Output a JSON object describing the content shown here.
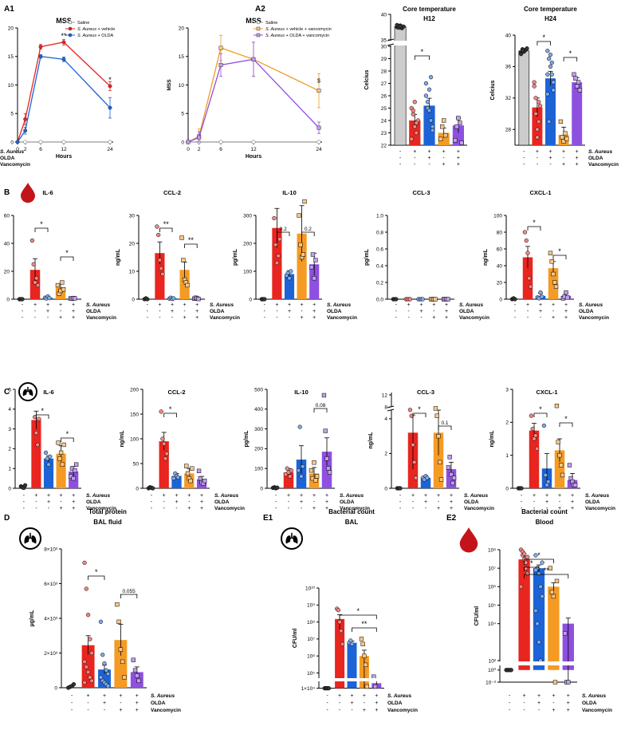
{
  "colors": {
    "saline": "#ffffff",
    "vehicle": "#e8251f",
    "olda": "#1c63d6",
    "vehicle_vanco": "#f59a23",
    "olda_vanco": "#8e50e0",
    "grey": "#cccccc"
  },
  "icons": {
    "blood": "blood-drop-icon",
    "lung": "lungs-icon"
  },
  "cond_row_labels": [
    "S. Aureus",
    "OLDA",
    "Vancomycin"
  ],
  "cond_row_values": [
    [
      "-",
      "+",
      "+",
      "+",
      "+"
    ],
    [
      "-",
      "-",
      "+",
      "-",
      "+"
    ],
    [
      "-",
      "-",
      "-",
      "+",
      "+"
    ]
  ],
  "panel_labels": {
    "A1": "A1",
    "A2": "A2",
    "B": "B",
    "C": "C",
    "D": "D",
    "E1": "E1",
    "E2": "E2"
  },
  "mss": {
    "title": "MSS",
    "xlabel": "Hours",
    "ylabel": "MSS",
    "x_ticks": [
      "0",
      "2",
      "6",
      "12",
      "24"
    ],
    "y_ticks": [
      "0",
      "5",
      "10",
      "15",
      "20"
    ],
    "legend_a1": [
      "Saline",
      "S. Aureus + vehicle",
      "S. Aureus + OLDA"
    ],
    "legend_a2": [
      "Saline",
      "S. Aureus + vehicle + vancomycin",
      "S. Aureus + OLDA + vancomycin"
    ],
    "sig_a1": [
      "**",
      "*"
    ],
    "sig_a2": [
      "$"
    ]
  },
  "core": {
    "title_h12": [
      "Core temperature",
      "H12"
    ],
    "title_h24": [
      "Core temperature",
      "H24"
    ],
    "ylabel": "Celcius",
    "h12_ticks": [
      "22",
      "23",
      "24",
      "25",
      "26",
      "27",
      "28",
      "29",
      "30",
      "35",
      "40"
    ],
    "h24_ticks": [
      "28",
      "32",
      "36",
      "40"
    ],
    "sig_h12": [
      "*"
    ],
    "sig_h24": [
      "*",
      "*"
    ]
  },
  "cyto": {
    "blood_titles": [
      "IL-6",
      "CCL-2",
      "IL-10",
      "CCL-3",
      "CXCL-1"
    ],
    "blood_ylabels": [
      "ng/mL",
      "ng/mL",
      "pg/mL",
      "pg/mL",
      "ng/mL"
    ],
    "blood_ticks": [
      [
        "0",
        "20",
        "40",
        "60"
      ],
      [
        "0",
        "10",
        "20",
        "30"
      ],
      [
        "0",
        "100",
        "200",
        "300"
      ],
      [
        "0.0",
        "0.2",
        "0.4",
        "0.6",
        "0.8",
        "1.0"
      ],
      [
        "0",
        "20",
        "40",
        "60",
        "80",
        "100"
      ]
    ],
    "blood_sig": [
      [
        "*",
        "*"
      ],
      [
        "**",
        "**"
      ],
      [
        "0.2",
        "0.2"
      ],
      [],
      [
        "*",
        "*"
      ]
    ],
    "lung_titles": [
      "IL-6",
      "CCL-2",
      "IL-10",
      "CCL-3",
      "CXCL-1"
    ],
    "lung_ylabels": [
      "ng/mL",
      "ng/mL",
      "pg/mL",
      "ng/mL",
      "ng/mL"
    ],
    "lung_ticks": [
      [
        "0",
        "1",
        "2",
        "3",
        "4",
        "5"
      ],
      [
        "0",
        "50",
        "100",
        "150",
        "200"
      ],
      [
        "0",
        "100",
        "200",
        "300",
        "400",
        "500"
      ],
      [
        "0",
        "2",
        "4",
        "8",
        "12"
      ],
      [
        "0",
        "1",
        "2",
        "3"
      ]
    ],
    "lung_sig": [
      [
        "*",
        "*"
      ],
      [
        "*"
      ],
      [
        "0.08"
      ],
      [
        "*",
        "0.1"
      ],
      [
        "*",
        "*"
      ]
    ]
  },
  "bottom": {
    "d_title": [
      "Total protein",
      "BAL fluid"
    ],
    "d_ylabel": "µg/mL",
    "d_ticks": [
      "0",
      "2×10³",
      "4×10³",
      "6×10³",
      "8×10³"
    ],
    "d_sig": [
      "*",
      "0.055"
    ],
    "e1_title": [
      "Bacterial count",
      "BAL"
    ],
    "e1_ylabel": "CFU/ml",
    "e1_ticks": [
      "1×10⁴",
      "10⁵",
      "10⁶",
      "10⁷",
      "10⁸",
      "10⁹",
      "10¹⁰"
    ],
    "e1_sig": [
      "*",
      "**"
    ],
    "e2_title": [
      "Bacterial count",
      "Blood"
    ],
    "e2_ylabel": "CFU/ml",
    "e2_ticks": [
      "10⁻²",
      "10⁰",
      "10²",
      "10⁴",
      "10⁵",
      "10⁶",
      "10⁷",
      "10⁸"
    ],
    "e2_sig": [
      "*",
      "*",
      "**"
    ]
  },
  "chart_data": [
    {
      "id": "A1",
      "type": "line",
      "title": "MSS",
      "xlabel": "Hours",
      "ylabel": "MSS",
      "x": [
        0,
        2,
        6,
        12,
        24
      ],
      "ylim": [
        0,
        20
      ],
      "series": [
        {
          "name": "Saline",
          "values": [
            0,
            0,
            0,
            0,
            0
          ]
        },
        {
          "name": "S. Aureus + vehicle",
          "values": [
            0,
            4,
            16.7,
            17.5,
            9.8
          ]
        },
        {
          "name": "S. Aureus + OLDA",
          "values": [
            0,
            2,
            15,
            14.5,
            6
          ]
        }
      ]
    },
    {
      "id": "A2",
      "type": "line",
      "title": "MSS",
      "xlabel": "Hours",
      "ylabel": "MSS",
      "x": [
        0,
        2,
        6,
        12,
        24
      ],
      "ylim": [
        0,
        20
      ],
      "series": [
        {
          "name": "Saline",
          "values": [
            0,
            0,
            0,
            0,
            0
          ]
        },
        {
          "name": "S. Aureus + vehicle + vancomycin",
          "values": [
            0,
            1,
            16.5,
            14.5,
            9
          ]
        },
        {
          "name": "S. Aureus + OLDA + vancomycin",
          "values": [
            0,
            0.8,
            13.5,
            14.5,
            2.5
          ]
        }
      ]
    },
    {
      "id": "core-h12",
      "type": "bar",
      "title": "Core temperature H12",
      "ylabel": "Celcius",
      "values": [
        37.6,
        24,
        25.2,
        23,
        23.6
      ]
    },
    {
      "id": "core-h24",
      "type": "bar",
      "title": "Core temperature H24",
      "ylabel": "Celcius",
      "ylim": [
        26,
        40
      ],
      "values": [
        38,
        30.8,
        34.5,
        27.3,
        34
      ]
    },
    {
      "id": "B-IL-6",
      "type": "bar",
      "title": "IL-6",
      "ylabel": "ng/mL",
      "ylim": [
        0,
        60
      ],
      "values": [
        0,
        21,
        1,
        8.5,
        0.5
      ]
    },
    {
      "id": "B-CCL-2",
      "type": "bar",
      "title": "CCL-2",
      "ylabel": "ng/mL",
      "ylim": [
        0,
        30
      ],
      "values": [
        0,
        16.5,
        0.3,
        10.5,
        0.3
      ]
    },
    {
      "id": "B-IL-10",
      "type": "bar",
      "title": "IL-10",
      "ylabel": "pg/mL",
      "ylim": [
        0,
        300
      ],
      "values": [
        0,
        255,
        90,
        235,
        125
      ]
    },
    {
      "id": "B-CCL-3",
      "type": "bar",
      "title": "CCL-3",
      "ylabel": "pg/mL",
      "ylim": [
        0,
        1
      ],
      "values": [
        0,
        0,
        0,
        0,
        0
      ]
    },
    {
      "id": "B-CXCL-1",
      "type": "bar",
      "title": "CXCL-1",
      "ylabel": "ng/mL",
      "ylim": [
        0,
        100
      ],
      "values": [
        0,
        50,
        4,
        37,
        4
      ]
    },
    {
      "id": "C-IL-6",
      "type": "bar",
      "title": "IL-6",
      "ylabel": "ng/mL",
      "ylim": [
        0,
        5
      ],
      "values": [
        0,
        3.45,
        1.5,
        1.75,
        0.85
      ]
    },
    {
      "id": "C-CCL-2",
      "type": "bar",
      "title": "CCL-2",
      "ylabel": "ng/mL",
      "ylim": [
        0,
        200
      ],
      "values": [
        0,
        95,
        25,
        30,
        18
      ]
    },
    {
      "id": "C-IL-10",
      "type": "bar",
      "title": "IL-10",
      "ylabel": "pg/mL",
      "ylim": [
        0,
        500
      ],
      "values": [
        0,
        80,
        145,
        75,
        185
      ]
    },
    {
      "id": "C-CCL-3",
      "type": "bar",
      "title": "CCL-3",
      "ylabel": "ng/mL",
      "values": [
        0,
        3.2,
        0.6,
        3.2,
        1.1
      ]
    },
    {
      "id": "C-CXCL-1",
      "type": "bar",
      "title": "CXCL-1",
      "ylabel": "ng/mL",
      "ylim": [
        0,
        3
      ],
      "values": [
        0,
        1.75,
        0.6,
        1.15,
        0.25
      ]
    },
    {
      "id": "D",
      "type": "bar",
      "title": "Total protein BAL fluid",
      "ylabel": "µg/mL",
      "ylim": [
        0,
        8000
      ],
      "values": [
        50,
        2450,
        1050,
        2750,
        900
      ]
    },
    {
      "id": "E1",
      "type": "bar",
      "title": "Bacterial count BAL",
      "ylabel": "CFU/ml",
      "values": [
        10000,
        150000000,
        6000000,
        1000000,
        25000
      ]
    },
    {
      "id": "E2",
      "type": "bar",
      "title": "Bacterial count Blood",
      "ylabel": "CFU/ml",
      "values": [
        1,
        30000000,
        10000000,
        1000000,
        10000
      ]
    }
  ]
}
